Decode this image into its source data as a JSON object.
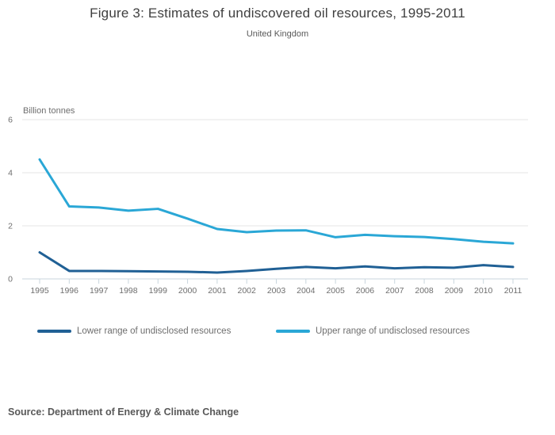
{
  "page": {
    "title": "Figure 3: Estimates of undiscovered oil resources, 1995-2011",
    "subtitle": "United Kingdom",
    "source": "Source: Department of Energy & Climate Change"
  },
  "chart_data": {
    "type": "line",
    "title": "Figure 3: Estimates of undiscovered oil resources, 1995-2011",
    "subtitle": "United Kingdom",
    "xlabel": "",
    "ylabel": "Billion tonnes",
    "ylim": [
      0,
      6
    ],
    "yticks": [
      0,
      2,
      4,
      6
    ],
    "grid": true,
    "legend_position": "bottom",
    "x": [
      1995,
      1996,
      1997,
      1998,
      1999,
      2000,
      2001,
      2002,
      2003,
      2004,
      2005,
      2006,
      2007,
      2008,
      2009,
      2010,
      2011
    ],
    "series": [
      {
        "name": "Lower range of undisclosed resources",
        "color": "#206095",
        "values": [
          1.0,
          0.3,
          0.3,
          0.29,
          0.28,
          0.27,
          0.24,
          0.3,
          0.38,
          0.45,
          0.4,
          0.47,
          0.4,
          0.44,
          0.42,
          0.52,
          0.45
        ]
      },
      {
        "name": "Upper range of undisclosed resources",
        "color": "#2aa7d6",
        "values": [
          4.5,
          2.73,
          2.69,
          2.57,
          2.64,
          2.27,
          1.88,
          1.76,
          1.82,
          1.83,
          1.57,
          1.66,
          1.61,
          1.58,
          1.5,
          1.4,
          1.34
        ]
      }
    ],
    "source": "Source: Department of Energy & Climate Change"
  },
  "colors": {
    "grid_line": "#e4e4e4",
    "axis_line": "#c9d6de",
    "tick_mark": "#c9d6de",
    "tick_label": "#6e6e6e",
    "title": "#3f3f3f",
    "subtitle": "#595959",
    "lower_series": "#206095",
    "upper_series": "#2aa7d6"
  }
}
